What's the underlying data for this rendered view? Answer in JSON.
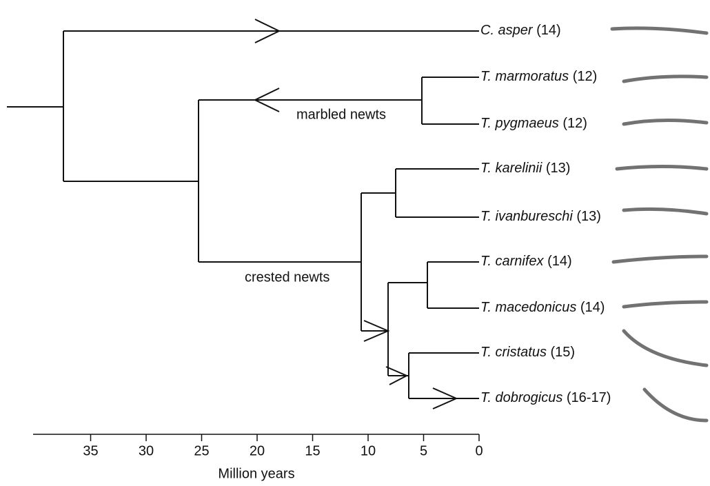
{
  "taxa": [
    {
      "name": "C. asper",
      "count": "(14)"
    },
    {
      "name": "T. marmoratus",
      "count": "(12)"
    },
    {
      "name": "T. pygmaeus",
      "count": "(12)"
    },
    {
      "name": "T. karelinii",
      "count": "(13)"
    },
    {
      "name": "T. ivanbureschi",
      "count": "(13)"
    },
    {
      "name": "T. carnifex",
      "count": "(14)"
    },
    {
      "name": "T. macedonicus",
      "count": "(14)"
    },
    {
      "name": "T. cristatus",
      "count": "(15)"
    },
    {
      "name": "T. dobrogicus",
      "count": "(16-17)"
    }
  ],
  "clades": [
    "marbled newts",
    "crested newts"
  ],
  "axis": {
    "label": "Million years",
    "ticks": [
      35,
      30,
      25,
      20,
      15,
      10,
      5,
      0
    ]
  }
}
